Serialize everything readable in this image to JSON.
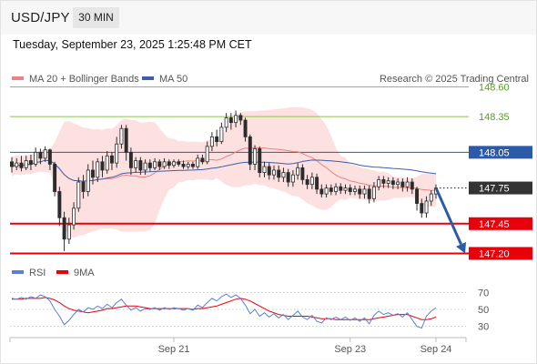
{
  "header": {
    "symbol": "USD/JPY",
    "timeframe_label": "30 MIN",
    "datetime": "Tuesday, September 23, 2025 1:25:48 PM CET"
  },
  "colors": {
    "ma20": "#f08080",
    "bollinger_band": "#fde0e0",
    "ma50": "#3b5fa8",
    "candle": "#2c2c2c",
    "resistance_green": "#8bc34a",
    "pivot_blue": "#2b5aa8",
    "support_red": "#e8000b",
    "current_price": "#333333",
    "rsi": "#5b7fd6",
    "rsi_ma": "#e8000b",
    "arrow": "#2b5aa8"
  },
  "chart_data": [
    {
      "type": "candlestick",
      "legend": [
        {
          "name": "MA 20 + Bollinger Bands",
          "color": "#f08080"
        },
        {
          "name": "MA 50",
          "color": "#3b5fa8"
        }
      ],
      "attribution": "Research © 2025 Trading Central",
      "ylim": [
        147.15,
        148.68
      ],
      "levels": [
        {
          "label": "148.60",
          "value": 148.6,
          "style": "resistance-green"
        },
        {
          "label": "148.35",
          "value": 148.35,
          "style": "resistance-green"
        },
        {
          "label": "148.05",
          "value": 148.05,
          "style": "pivot-blue"
        },
        {
          "label": "147.75",
          "value": 147.75,
          "style": "current-price"
        },
        {
          "label": "147.45",
          "value": 147.45,
          "style": "support-red"
        },
        {
          "label": "147.20",
          "value": 147.2,
          "style": "support-red"
        }
      ],
      "forecast_arrow": {
        "from": 147.75,
        "to": 147.2
      },
      "xticks": [
        {
          "label": "Sep 21",
          "index": 34
        },
        {
          "label": "Sep 23",
          "index": 71
        },
        {
          "label": "Sep 24",
          "index": 89
        }
      ],
      "candles": [
        [
          147.97,
          147.93,
          148.01,
          147.88
        ],
        [
          147.93,
          147.96,
          148.0,
          147.9
        ],
        [
          147.96,
          147.92,
          148.02,
          147.89
        ],
        [
          147.92,
          147.98,
          148.02,
          147.9
        ],
        [
          147.98,
          147.95,
          148.03,
          147.9
        ],
        [
          147.95,
          148.05,
          148.09,
          147.93
        ],
        [
          148.05,
          148.0,
          148.08,
          147.95
        ],
        [
          148.0,
          148.07,
          148.1,
          147.97
        ],
        [
          148.07,
          147.95,
          148.08,
          147.9
        ],
        [
          147.95,
          147.72,
          147.97,
          147.68
        ],
        [
          147.72,
          147.5,
          147.76,
          147.43
        ],
        [
          147.5,
          147.32,
          147.55,
          147.22
        ],
        [
          147.32,
          147.44,
          147.5,
          147.28
        ],
        [
          147.44,
          147.58,
          147.63,
          147.4
        ],
        [
          147.58,
          147.8,
          147.84,
          147.55
        ],
        [
          147.8,
          147.72,
          147.86,
          147.66
        ],
        [
          147.72,
          147.9,
          147.95,
          147.68
        ],
        [
          147.9,
          147.84,
          147.98,
          147.78
        ],
        [
          147.84,
          147.97,
          148.0,
          147.8
        ],
        [
          147.97,
          147.9,
          148.02,
          147.84
        ],
        [
          147.9,
          148.02,
          148.06,
          147.87
        ],
        [
          148.02,
          147.96,
          148.05,
          147.9
        ],
        [
          147.96,
          148.12,
          148.18,
          147.92
        ],
        [
          148.12,
          148.25,
          148.28,
          148.08
        ],
        [
          148.25,
          148.05,
          148.28,
          147.98
        ],
        [
          148.05,
          147.92,
          148.09,
          147.86
        ],
        [
          147.92,
          147.98,
          148.01,
          147.88
        ],
        [
          147.98,
          147.9,
          148.01,
          147.86
        ],
        [
          147.9,
          147.96,
          147.99,
          147.86
        ],
        [
          147.96,
          147.92,
          147.99,
          147.89
        ],
        [
          147.92,
          147.97,
          148.0,
          147.9
        ],
        [
          147.97,
          147.93,
          147.99,
          147.9
        ],
        [
          147.93,
          147.97,
          148.0,
          147.91
        ],
        [
          147.97,
          147.94,
          147.99,
          147.91
        ],
        [
          147.94,
          147.97,
          147.99,
          147.92
        ],
        [
          147.97,
          147.95,
          147.99,
          147.93
        ],
        [
          147.95,
          147.93,
          147.98,
          147.91
        ],
        [
          147.93,
          147.95,
          147.97,
          147.91
        ],
        [
          147.95,
          147.93,
          147.97,
          147.91
        ],
        [
          147.93,
          148.0,
          148.03,
          147.91
        ],
        [
          148.0,
          147.97,
          148.03,
          147.95
        ],
        [
          147.97,
          148.1,
          148.14,
          147.95
        ],
        [
          148.1,
          148.18,
          148.22,
          148.06
        ],
        [
          148.18,
          148.14,
          148.24,
          148.1
        ],
        [
          148.14,
          148.26,
          148.3,
          148.12
        ],
        [
          148.26,
          148.34,
          148.38,
          148.22
        ],
        [
          148.34,
          148.3,
          148.38,
          148.24
        ],
        [
          148.3,
          148.36,
          148.4,
          148.26
        ],
        [
          148.36,
          148.32,
          148.38,
          148.28
        ],
        [
          148.32,
          148.18,
          148.34,
          148.14
        ],
        [
          148.18,
          147.95,
          148.2,
          147.9
        ],
        [
          147.95,
          148.08,
          148.11,
          147.9
        ],
        [
          148.08,
          147.88,
          148.1,
          147.84
        ],
        [
          147.88,
          147.93,
          147.97,
          147.84
        ],
        [
          147.93,
          147.86,
          147.96,
          147.82
        ],
        [
          147.86,
          147.9,
          147.94,
          147.82
        ],
        [
          147.9,
          147.84,
          147.94,
          147.8
        ],
        [
          147.84,
          147.88,
          147.92,
          147.8
        ],
        [
          147.88,
          147.8,
          147.91,
          147.76
        ],
        [
          147.8,
          147.86,
          147.9,
          147.76
        ],
        [
          147.86,
          147.92,
          147.96,
          147.82
        ],
        [
          147.92,
          147.82,
          147.95,
          147.78
        ],
        [
          147.82,
          147.78,
          147.86,
          147.74
        ],
        [
          147.78,
          147.84,
          147.88,
          147.74
        ],
        [
          147.84,
          147.74,
          147.87,
          147.7
        ],
        [
          147.74,
          147.7,
          147.78,
          147.67
        ],
        [
          147.7,
          147.75,
          147.78,
          147.67
        ],
        [
          147.75,
          147.72,
          147.78,
          147.69
        ],
        [
          147.72,
          147.76,
          147.79,
          147.69
        ],
        [
          147.76,
          147.73,
          147.79,
          147.7
        ],
        [
          147.73,
          147.75,
          147.78,
          147.7
        ],
        [
          147.75,
          147.72,
          147.78,
          147.69
        ],
        [
          147.72,
          147.74,
          147.77,
          147.69
        ],
        [
          147.74,
          147.7,
          147.77,
          147.66
        ],
        [
          147.7,
          147.74,
          147.77,
          147.66
        ],
        [
          147.74,
          147.66,
          147.77,
          147.62
        ],
        [
          147.66,
          147.76,
          147.8,
          147.63
        ],
        [
          147.76,
          147.82,
          147.85,
          147.73
        ],
        [
          147.82,
          147.79,
          147.85,
          147.75
        ],
        [
          147.79,
          147.81,
          147.84,
          147.75
        ],
        [
          147.81,
          147.78,
          147.84,
          147.74
        ],
        [
          147.78,
          147.8,
          147.83,
          147.74
        ],
        [
          147.8,
          147.76,
          147.83,
          147.72
        ],
        [
          147.76,
          147.8,
          147.84,
          147.72
        ],
        [
          147.8,
          147.74,
          147.83,
          147.7
        ],
        [
          147.74,
          147.62,
          147.76,
          147.56
        ],
        [
          147.62,
          147.54,
          147.66,
          147.5
        ],
        [
          147.54,
          147.64,
          147.68,
          147.5
        ],
        [
          147.64,
          147.7,
          147.73,
          147.6
        ],
        [
          147.7,
          147.75,
          147.78,
          147.66
        ]
      ]
    },
    {
      "type": "line",
      "name": "RSI",
      "legend": [
        {
          "name": "RSI",
          "color": "#5b7fd6"
        },
        {
          "name": "9MA",
          "color": "#e8000b"
        }
      ],
      "ylim": [
        20,
        80
      ],
      "yticks": [
        {
          "label": "70",
          "value": 70
        },
        {
          "label": "50",
          "value": 50
        },
        {
          "label": "30",
          "value": 30
        }
      ],
      "rsi": [
        63,
        62,
        64,
        62,
        65,
        63,
        67,
        65,
        60,
        50,
        42,
        32,
        37,
        44,
        50,
        47,
        52,
        50,
        54,
        51,
        56,
        52,
        58,
        62,
        55,
        49,
        52,
        48,
        51,
        50,
        52,
        49,
        52,
        50,
        52,
        51,
        49,
        51,
        49,
        55,
        52,
        58,
        63,
        60,
        65,
        68,
        64,
        67,
        63,
        55,
        45,
        50,
        42,
        46,
        41,
        45,
        40,
        44,
        38,
        43,
        48,
        41,
        38,
        43,
        36,
        34,
        40,
        38,
        41,
        38,
        41,
        37,
        40,
        36,
        40,
        33,
        43,
        48,
        44,
        46,
        43,
        45,
        41,
        46,
        38,
        30,
        28,
        42,
        48,
        52
      ],
      "rsi_ma": [
        62,
        62,
        62,
        63,
        63,
        63,
        63,
        64,
        63,
        61,
        58,
        54,
        51,
        49,
        48,
        47,
        46,
        47,
        48,
        49,
        51,
        51,
        52,
        53,
        54,
        54,
        54,
        53,
        52,
        51,
        51,
        51,
        51,
        51,
        51,
        51,
        51,
        51,
        50,
        51,
        51,
        52,
        53,
        54,
        56,
        58,
        60,
        62,
        63,
        62,
        60,
        57,
        54,
        51,
        48,
        46,
        44,
        43,
        42,
        42,
        42,
        42,
        42,
        41,
        40,
        39,
        39,
        39,
        38,
        38,
        38,
        38,
        38,
        38,
        38,
        38,
        39,
        40,
        41,
        42,
        43,
        44,
        44,
        44,
        42,
        40,
        38,
        38,
        39,
        41
      ]
    }
  ]
}
